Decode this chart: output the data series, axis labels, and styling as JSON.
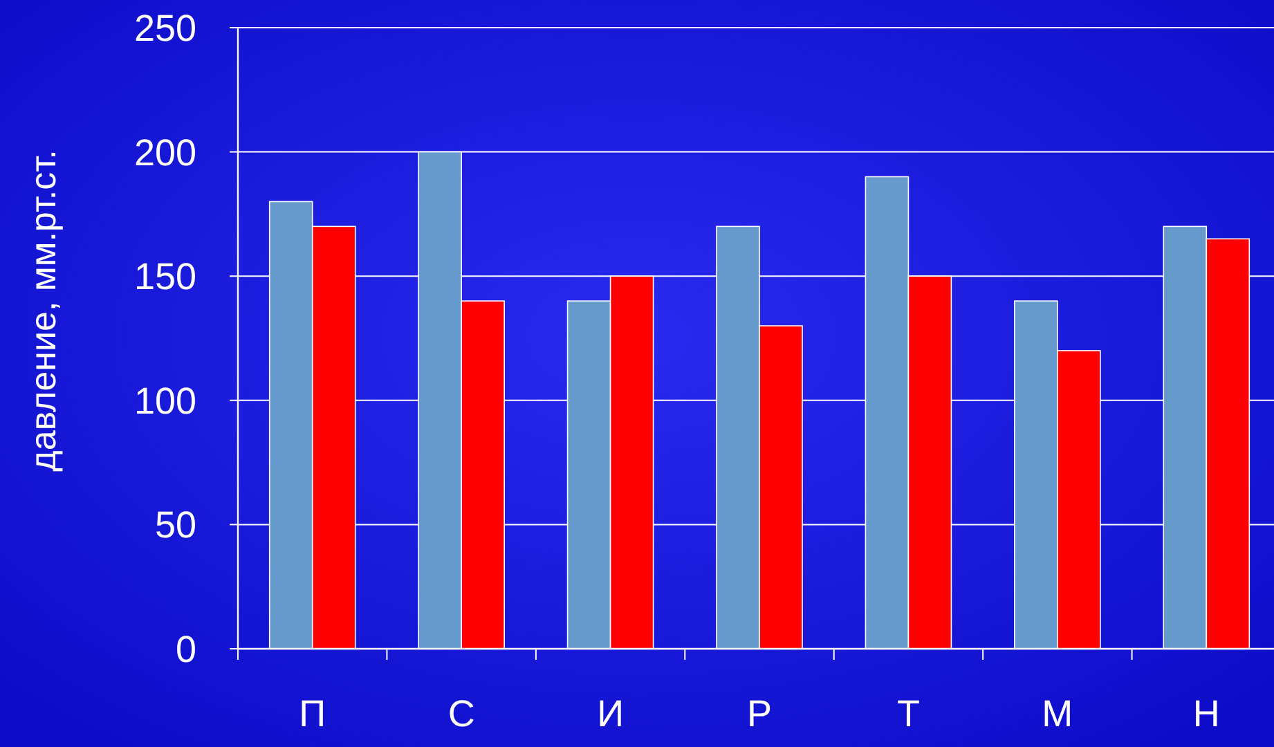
{
  "chart_data": {
    "type": "bar",
    "ylabel": "давление, мм.рт.ст.",
    "categories": [
      "П",
      "С",
      "И",
      "Р",
      "Т",
      "М",
      "Н"
    ],
    "series": [
      {
        "color": "#6699cc",
        "values": [
          180,
          200,
          140,
          170,
          190,
          140,
          170
        ]
      },
      {
        "color": "#ff0000",
        "values": [
          170,
          140,
          150,
          130,
          150,
          120,
          165
        ]
      }
    ],
    "ylim": [
      0,
      250
    ],
    "yticks": [
      0,
      50,
      100,
      150,
      200,
      250
    ],
    "grid": "y"
  }
}
